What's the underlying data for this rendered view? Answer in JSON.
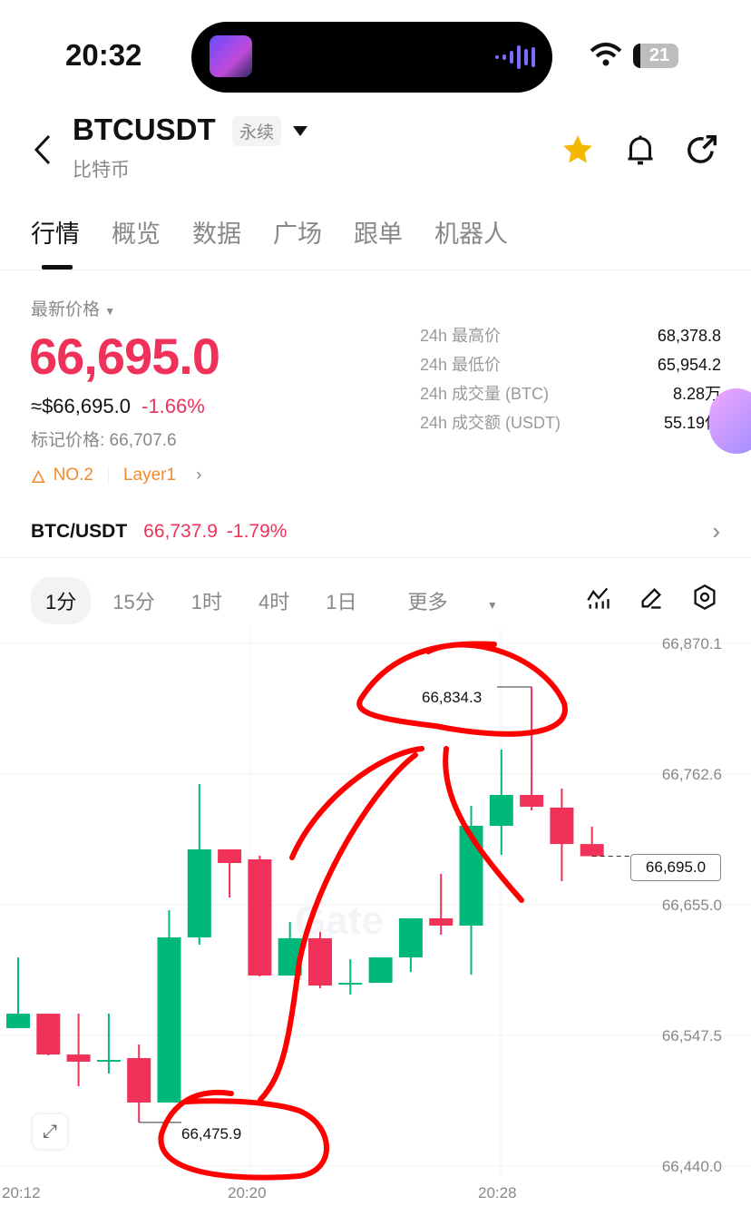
{
  "status_bar": {
    "time": "20:32",
    "battery": "21",
    "icons": [
      "wifi-icon",
      "battery-icon"
    ]
  },
  "header": {
    "symbol": "BTCUSDT",
    "contract_type": "永续",
    "name": "比特币",
    "icons": [
      "back-icon",
      "star-icon",
      "bell-icon",
      "share-icon"
    ],
    "star_color": "#f5b800"
  },
  "tabs": [
    {
      "label": "行情",
      "active": true
    },
    {
      "label": "概览"
    },
    {
      "label": "数据"
    },
    {
      "label": "广场"
    },
    {
      "label": "跟单"
    },
    {
      "label": "机器人"
    }
  ],
  "price": {
    "label": "最新价格",
    "last": "66,695.0",
    "usd": "≈$66,695.0",
    "change": "-1.66%",
    "mark": "标记价格: 66,707.6",
    "rank": "NO.2",
    "tag": "Layer1",
    "stats": [
      {
        "k": "24h 最高价",
        "v": "68,378.8"
      },
      {
        "k": "24h 最低价",
        "v": "65,954.2"
      },
      {
        "k": "24h 成交量 (BTC)",
        "v": "8.28万"
      },
      {
        "k": "24h 成交额 (USDT)",
        "v": "55.19亿"
      }
    ]
  },
  "spot": {
    "pair": "BTC/USDT",
    "price": "66,737.9",
    "change": "-1.79%"
  },
  "timeframes": [
    {
      "label": "1分",
      "selected": true
    },
    {
      "label": "15分"
    },
    {
      "label": "1时"
    },
    {
      "label": "4时"
    },
    {
      "label": "1日"
    },
    {
      "label": "更多"
    }
  ],
  "colors": {
    "up": "#00b87a",
    "down": "#f0325a",
    "annotation": "#ff0000"
  },
  "chart_data": {
    "type": "candlestick",
    "y_ticks": [
      "66,870.1",
      "66,762.6",
      "66,655.0",
      "66,547.5",
      "66,440.0"
    ],
    "ylim": [
      66440.0,
      66870.1
    ],
    "x_ticks": [
      "20:12",
      "20:20",
      "20:28"
    ],
    "high_label": "66,834.3",
    "low_label": "66,475.9",
    "current_price": "66,695.0",
    "watermark": "Gate",
    "candles": [
      {
        "t": "20:11",
        "o": 66570.7,
        "c": 66552.0,
        "h": 66570.7,
        "l": 66552.0
      },
      {
        "t": "20:12",
        "o": 66553.5,
        "c": 66565.4,
        "h": 66611.7,
        "l": 66553.5
      },
      {
        "t": "20:13",
        "o": 66565.4,
        "c": 66531.8,
        "h": 66565.4,
        "l": 66531.1
      },
      {
        "t": "20:14",
        "o": 66531.8,
        "c": 66525.9,
        "h": 66565.4,
        "l": 66505.7
      },
      {
        "t": "20:15",
        "o": 66525.9,
        "c": 66527.4,
        "h": 66565.4,
        "l": 66516.2
      },
      {
        "t": "20:16",
        "o": 66528.9,
        "c": 66492.3,
        "h": 66540.1,
        "l": 66475.9
      },
      {
        "t": "20:17",
        "o": 66492.3,
        "c": 66628.2,
        "h": 66650.6,
        "l": 66492.3
      },
      {
        "t": "20:18",
        "o": 66628.2,
        "c": 66700.6,
        "h": 66754.4,
        "l": 66622.2
      },
      {
        "t": "20:19",
        "o": 66700.6,
        "c": 66689.4,
        "h": 66700.6,
        "l": 66661.0
      },
      {
        "t": "20:20",
        "o": 66692.4,
        "c": 66596.8,
        "h": 66695.4,
        "l": 66596.1
      },
      {
        "t": "20:21",
        "o": 66596.8,
        "c": 66627.5,
        "h": 66640.9,
        "l": 66596.8
      },
      {
        "t": "20:22",
        "o": 66627.5,
        "c": 66588.6,
        "h": 66637.9,
        "l": 66586.4
      },
      {
        "t": "20:23",
        "o": 66589.3,
        "c": 66590.8,
        "h": 66610.2,
        "l": 66581.1
      },
      {
        "t": "20:24",
        "o": 66590.8,
        "c": 66611.7,
        "h": 66611.7,
        "l": 66590.8
      },
      {
        "t": "20:25",
        "o": 66611.7,
        "c": 66643.9,
        "h": 66643.9,
        "l": 66599.8
      },
      {
        "t": "20:26",
        "o": 66643.9,
        "c": 66637.9,
        "h": 66680.4,
        "l": 66630.4
      },
      {
        "t": "20:27",
        "o": 66637.9,
        "c": 66720.0,
        "h": 66736.4,
        "l": 66597.5
      },
      {
        "t": "20:28",
        "o": 66720.0,
        "c": 66745.4,
        "h": 66782.7,
        "l": 66696.1
      },
      {
        "t": "20:29",
        "o": 66745.4,
        "c": 66735.7,
        "h": 66834.3,
        "l": 66732.7
      },
      {
        "t": "20:30",
        "o": 66735.0,
        "c": 66705.0,
        "h": 66750.6,
        "l": 66674.5
      },
      {
        "t": "20:31",
        "o": 66705.0,
        "c": 66695.0,
        "h": 66719.3,
        "l": 66695.0
      }
    ]
  }
}
